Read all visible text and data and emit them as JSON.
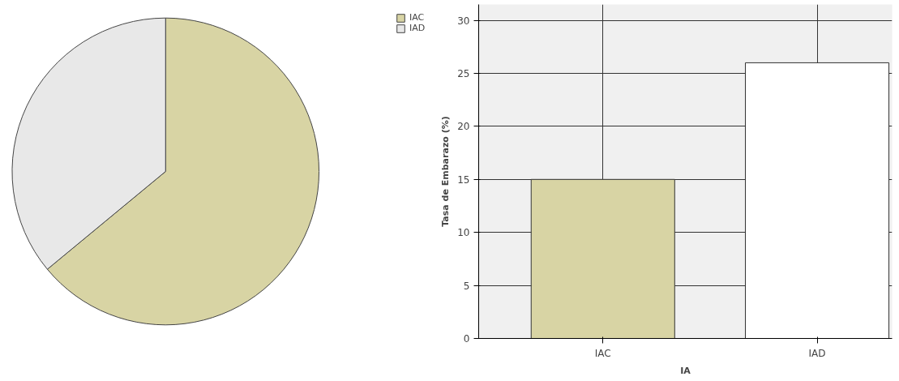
{
  "chart_data": [
    {
      "type": "pie",
      "categories": [
        "IAC",
        "IAD"
      ],
      "values": [
        64,
        36
      ],
      "colors": [
        "#d8d4a4",
        "#e8e8e8"
      ],
      "legend": "top right"
    },
    {
      "type": "bar",
      "categories": [
        "IAC",
        "IAD"
      ],
      "values": [
        15,
        26
      ],
      "colors": [
        "#d8d4a4",
        "#ffffff"
      ],
      "xlabel": "IA",
      "ylabel": "Tasa de Embarazo (%)",
      "ylim": [
        0,
        31.5
      ],
      "yticks": [
        0,
        5,
        10,
        15,
        20,
        25,
        30
      ],
      "grid": true
    }
  ]
}
